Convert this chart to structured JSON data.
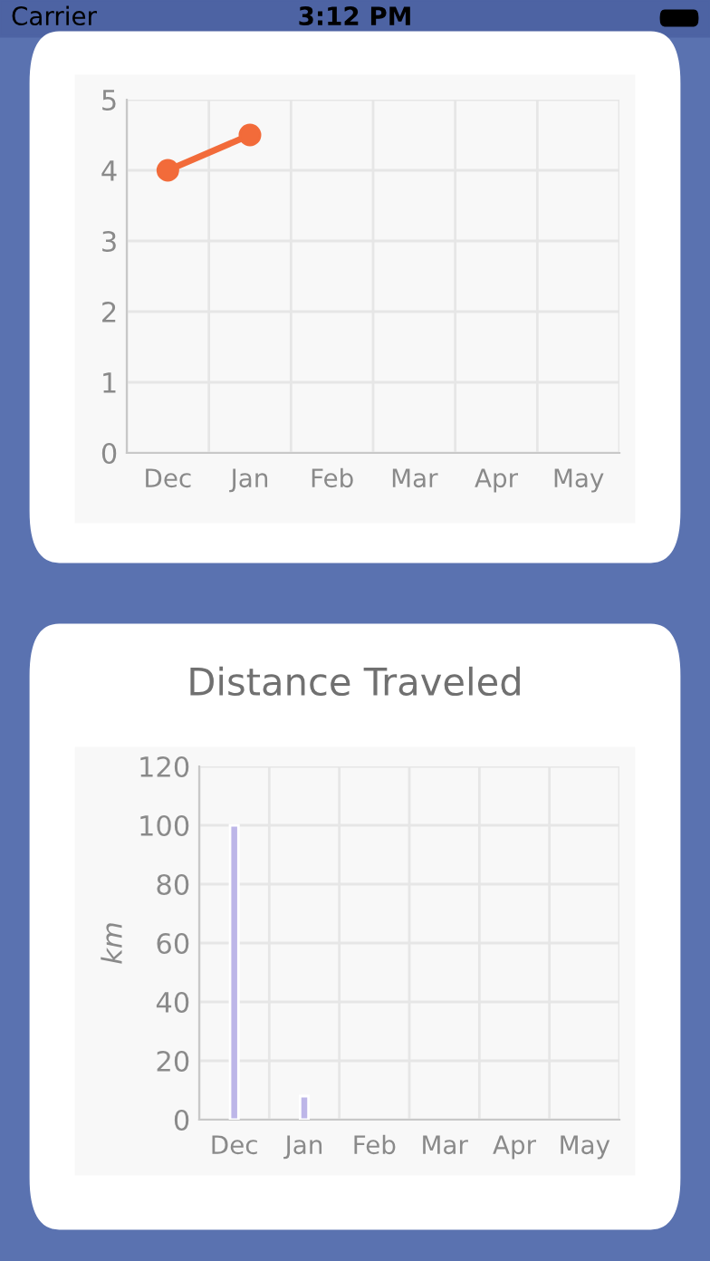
{
  "chart_data": [
    {
      "type": "line",
      "categories": [
        "Dec",
        "Jan",
        "Feb",
        "Mar",
        "Apr",
        "May"
      ],
      "series": [
        {
          "color": "#f26b3a",
          "values": [
            4,
            4.5,
            null,
            null,
            null,
            null
          ]
        }
      ],
      "ylim": [
        0,
        5
      ],
      "yticks": [
        0,
        1,
        2,
        3,
        4,
        5
      ],
      "grid": true,
      "marker": "circle",
      "line_style": "solid",
      "annotations": [
        "Carrier",
        "3:12 PM"
      ]
    },
    {
      "type": "bar",
      "title": "Distance Traveled",
      "ylabel": "km",
      "categories": [
        "Dec",
        "Jan",
        "Feb",
        "Mar",
        "Apr",
        "May"
      ],
      "series": [
        {
          "color": "#bdb6e8",
          "values": [
            100,
            8,
            null,
            null,
            null,
            null
          ]
        }
      ],
      "ylim": [
        0,
        120
      ],
      "yticks": [
        0,
        20,
        40,
        60,
        80,
        100,
        120
      ],
      "grid": true
    }
  ]
}
